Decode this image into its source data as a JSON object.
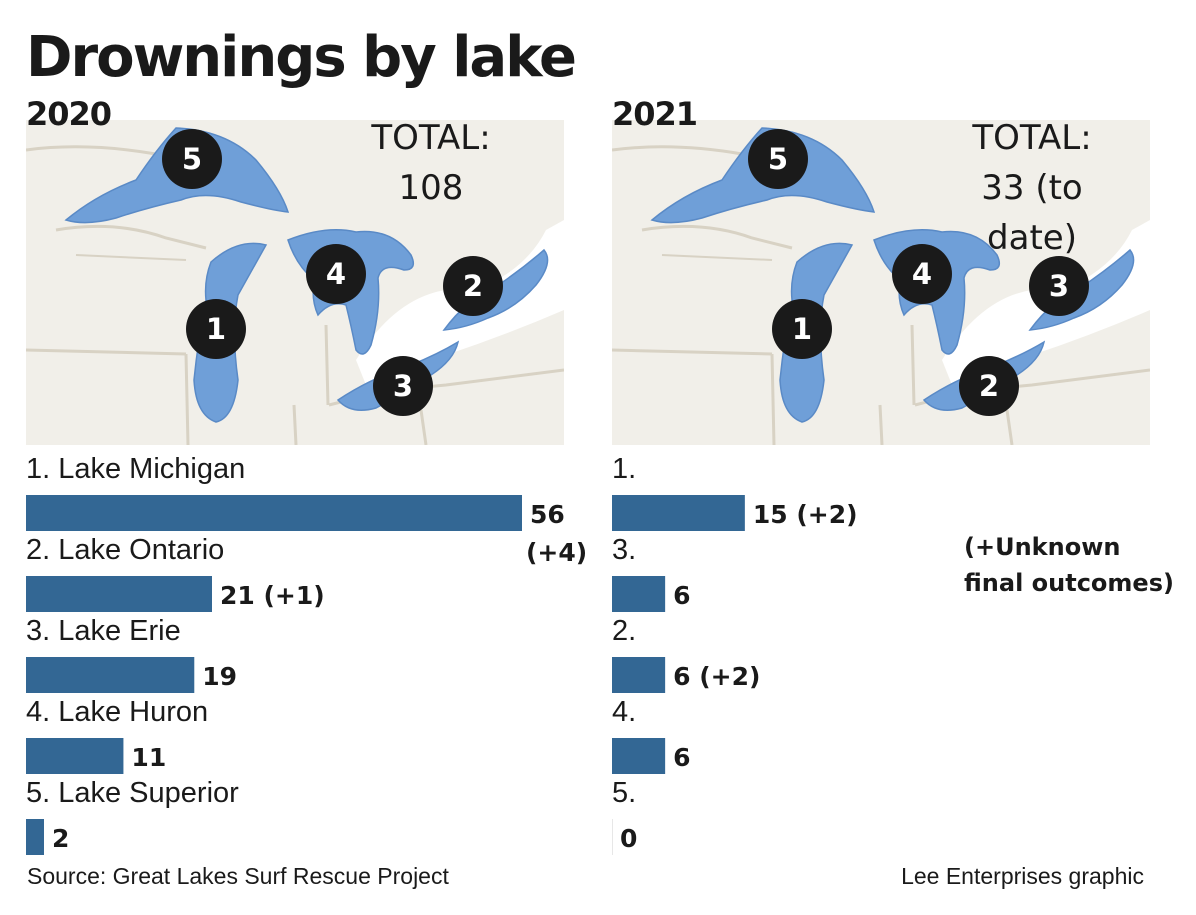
{
  "title": "Drownings by lake",
  "colors": {
    "bar": "#336794",
    "water": "#6f9fd8",
    "land": "#f1efe9",
    "border": "#d8d2c4",
    "marker": "#1a1a1a"
  },
  "panels": [
    {
      "year": "2020",
      "total_label": "TOTAL:",
      "total_value": "108",
      "markers": [
        {
          "number": "1",
          "lake": "Lake Michigan"
        },
        {
          "number": "2",
          "lake": "Lake Ontario"
        },
        {
          "number": "3",
          "lake": "Lake Erie"
        },
        {
          "number": "4",
          "lake": "Lake Huron"
        },
        {
          "number": "5",
          "lake": "Lake Superior"
        }
      ]
    },
    {
      "year": "2021",
      "total_label": "TOTAL:",
      "total_value": "33 (to date)",
      "note": "(+Unknown\nfinal outcomes)",
      "markers": [
        {
          "number": "1",
          "lake": "Lake Michigan"
        },
        {
          "number": "3",
          "lake": "Lake Ontario"
        },
        {
          "number": "2",
          "lake": "Lake Erie"
        },
        {
          "number": "4",
          "lake": "Lake Huron"
        },
        {
          "number": "5",
          "lake": "Lake Superior"
        }
      ]
    }
  ],
  "chart_data": [
    {
      "type": "bar",
      "orientation": "horizontal",
      "title": "2020",
      "categories": [
        "1. Lake Michigan",
        "2. Lake Ontario",
        "3. Lake Erie",
        "4. Lake Huron",
        "5. Lake Superior"
      ],
      "values": [
        56,
        21,
        19,
        11,
        2
      ],
      "value_labels": [
        "56",
        "21 (+1)",
        "19",
        "11",
        "2"
      ],
      "value_label_suffix_lines": [
        "(+4)",
        "",
        "",
        "",
        ""
      ],
      "xlim": [
        0,
        56
      ]
    },
    {
      "type": "bar",
      "orientation": "horizontal",
      "title": "2021",
      "categories": [
        "1.",
        "3.",
        "2.",
        "4.",
        "5."
      ],
      "values": [
        15,
        6,
        6,
        6,
        0
      ],
      "value_labels": [
        "15 (+2)",
        "6",
        "6 (+2)",
        "6",
        "0"
      ],
      "value_label_suffix_lines": [
        "",
        "",
        "",
        "",
        ""
      ],
      "xlim": [
        0,
        56
      ]
    }
  ],
  "footer": {
    "source": "Source: Great Lakes Surf Rescue Project",
    "credit": "Lee Enterprises graphic"
  }
}
